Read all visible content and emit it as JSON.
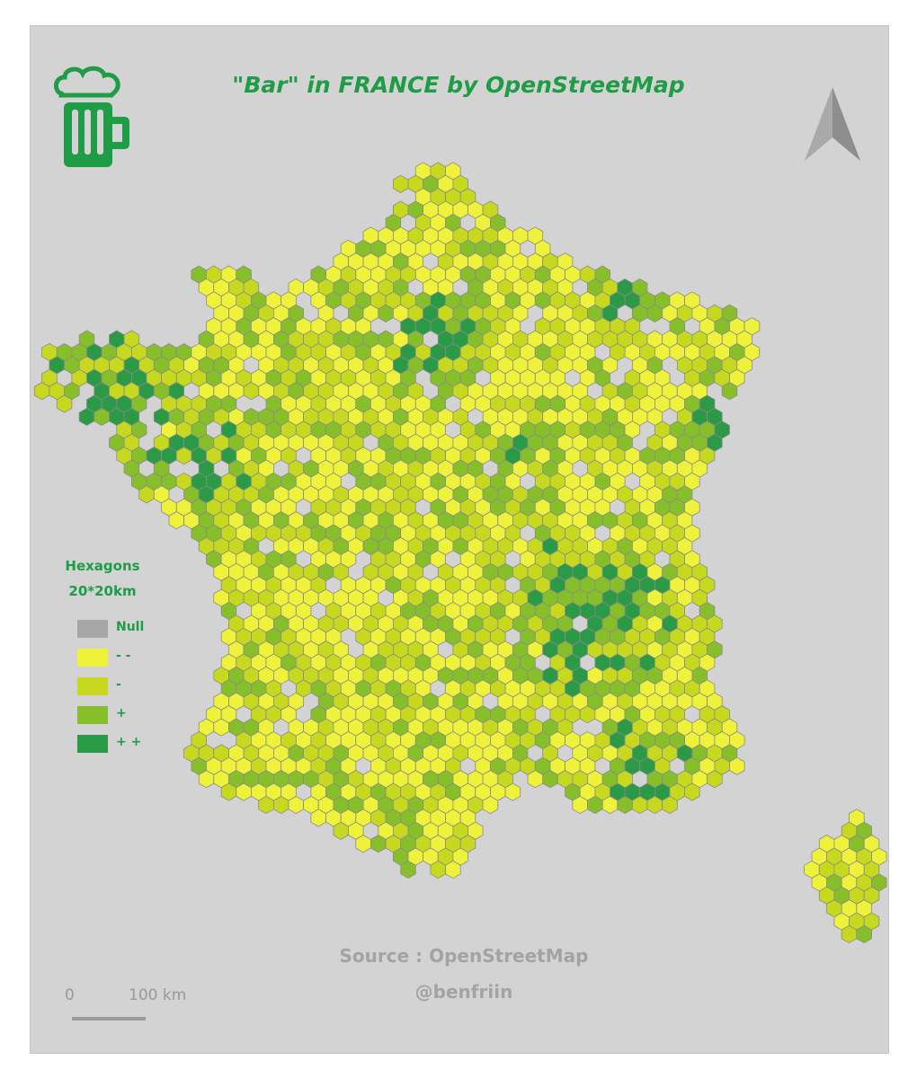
{
  "title": "\"Bar\" in FRANCE by OpenStreetMap",
  "legend": {
    "title_line1": "Hexagons",
    "title_line2": "20*20km",
    "classes": [
      {
        "label": "Null",
        "color": "#a6a6a6"
      },
      {
        "label": "- -",
        "color": "#eef23a"
      },
      {
        "label": "-",
        "color": "#c6d91e"
      },
      {
        "label": "+",
        "color": "#86bf2a"
      },
      {
        "label": "+ +",
        "color": "#2a9a47"
      }
    ]
  },
  "source": "Source  :  OpenStreetMap",
  "credit": "@benfriin",
  "scale": {
    "zero": "0",
    "distance": "100 km"
  },
  "icons": {
    "beer": "beer-mug-icon",
    "north": "north-arrow-icon"
  },
  "colors": {
    "background": "#d3d3d3",
    "accent": "#1e9c46",
    "hex_stroke": "#8a8a8a"
  }
}
